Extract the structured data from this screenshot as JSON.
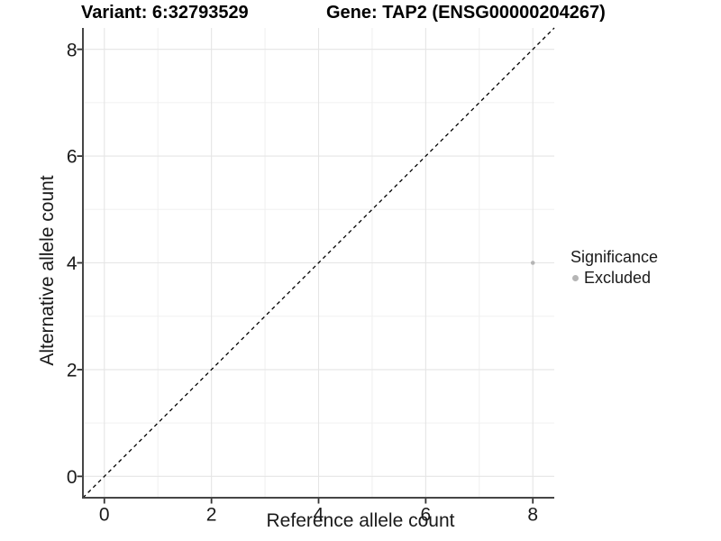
{
  "titles": {
    "variant": "Variant: 6:32793529",
    "gene": "Gene: TAP2 (ENSG00000204267)"
  },
  "chart_data": {
    "type": "scatter",
    "xlabel": "Reference allele count",
    "ylabel": "Alternative allele count",
    "xlim": [
      -0.4,
      8.4
    ],
    "ylim": [
      -0.4,
      8.4
    ],
    "x_major_ticks": [
      0,
      2,
      4,
      6,
      8
    ],
    "x_minor_ticks": [
      1,
      3,
      5,
      7
    ],
    "y_major_ticks": [
      0,
      2,
      4,
      6,
      8
    ],
    "y_minor_ticks": [
      1,
      3,
      5,
      7
    ],
    "grid": "major+minor",
    "points": [
      {
        "x": 8,
        "y": 4,
        "series": "Excluded"
      }
    ],
    "identity_line": {
      "style": "dashed",
      "color": "#000000",
      "span": [
        -0.4,
        8.4
      ]
    },
    "legend": {
      "title": "Significance",
      "position": "right",
      "entries": [
        {
          "label": "Excluded",
          "color": "#b5b5b5",
          "marker": "point"
        }
      ]
    }
  },
  "colors": {
    "background": "#ffffff",
    "grid_major": "#e5e5e5",
    "grid_minor": "#f0f0f0",
    "axis_line": "#464646",
    "tick_mark": "#333333",
    "tick_label": "#1a1a1a",
    "point": "#b5b5b5",
    "reference_line": "#000000"
  }
}
